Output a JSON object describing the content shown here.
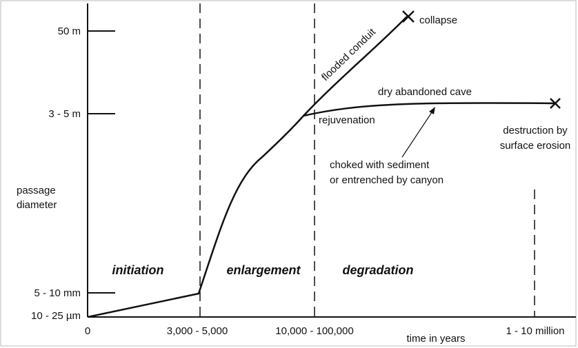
{
  "y_axis": {
    "labels": [
      "50 m",
      "3 - 5 m",
      "5 - 10 mm",
      "10 - 25 µm"
    ],
    "title": [
      "passage",
      "diameter"
    ]
  },
  "x_axis": {
    "labels": [
      "0",
      "3,000 - 5,000",
      "10,000 - 100,000",
      "1 - 10 million"
    ],
    "title": "time in years"
  },
  "phases": [
    "initiation",
    "enlargement",
    "degradation"
  ],
  "annotations": {
    "flooded": "flooded conduit",
    "collapse": "collapse",
    "dry": "dry abandoned cave",
    "rejuvenation": "rejuvenation",
    "destruction": [
      "destruction by",
      "surface erosion"
    ],
    "choked": [
      "choked with sediment",
      "or entrenched by canyon"
    ]
  }
}
